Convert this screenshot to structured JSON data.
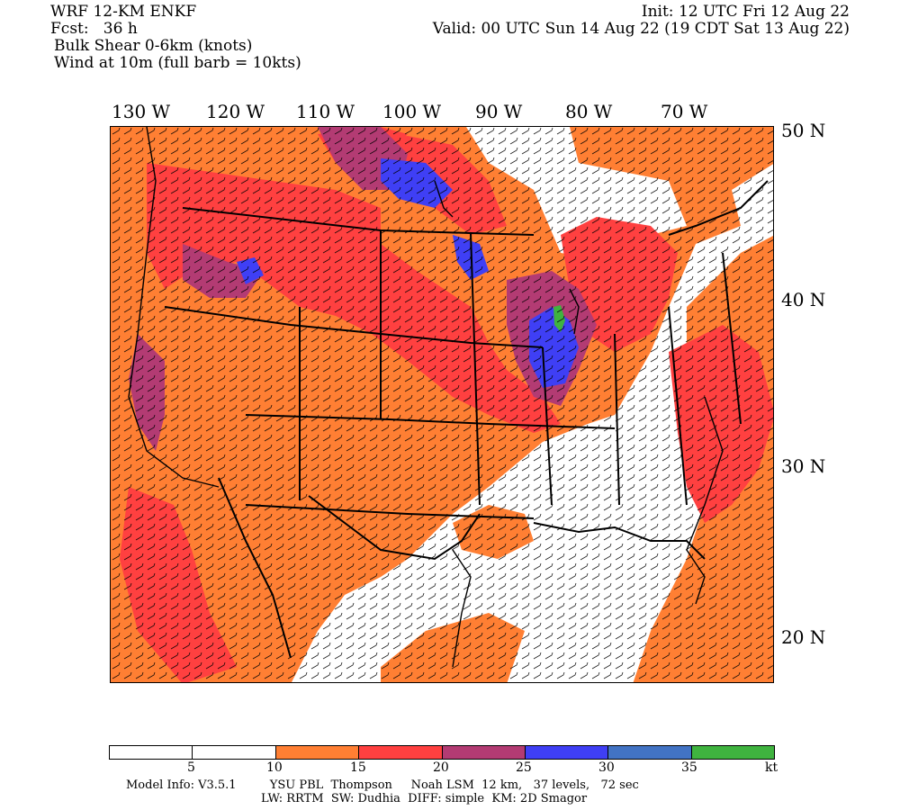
{
  "header": {
    "model": "WRF 12-KM ENKF",
    "init": "Init: 12 UTC Fri 12 Aug 22",
    "fcst": "Fcst:   36 h",
    "valid": "Valid: 00 UTC Sun 14 Aug 22 (19 CDT Sat 13 Aug 22)",
    "field1": "Bulk Shear 0-6km (knots)",
    "field2": "Wind at 10m (full barb = 10kts)"
  },
  "longitude_labels": [
    "130 W",
    "120 W",
    "110 W",
    "100 W",
    "90 W",
    "80 W",
    "70 W"
  ],
  "latitude_labels": [
    "50 N",
    "40 N",
    "30 N",
    "20 N"
  ],
  "colorbar": {
    "colors": [
      "#ffffff",
      "#ffffff",
      "#ff7f33",
      "#ff4040",
      "#b33b73",
      "#3f3ff5",
      "#4273c4",
      "#3fb33f"
    ],
    "ticks": [
      "5",
      "10",
      "15",
      "20",
      "25",
      "30",
      "35",
      "kt"
    ]
  },
  "footer": {
    "line1": "Model Info: V3.5.1         YSU PBL  Thompson     Noah LSM  12 km,   37 levels,   72 sec",
    "line2": "LW: RRTM  SW: Dudhia  DIFF: simple  KM: 2D Smagor"
  },
  "shading_colors": {
    "orange": "#ff7f33",
    "red": "#ff4040",
    "purple": "#b33b73",
    "blue": "#3f3ff5",
    "steelblue": "#4273c4",
    "green": "#3fb33f"
  }
}
